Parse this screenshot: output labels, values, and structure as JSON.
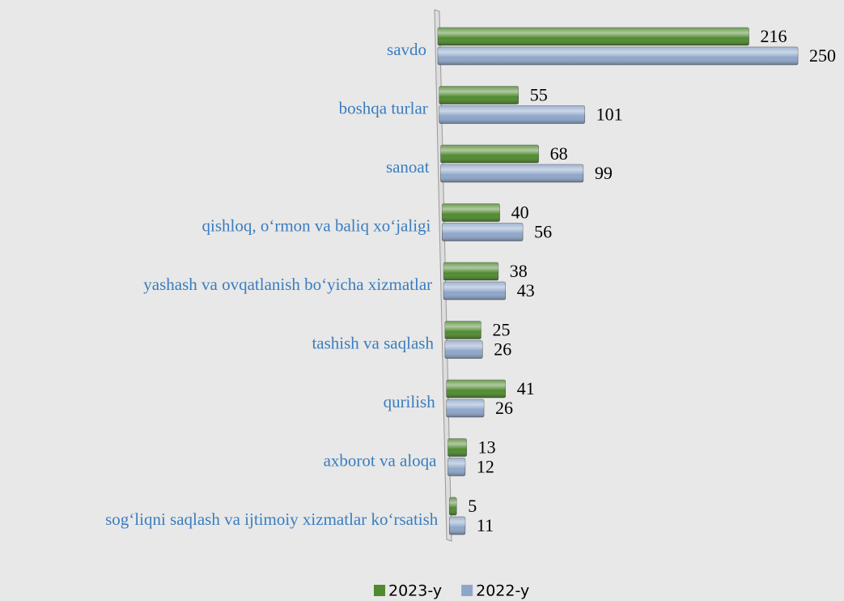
{
  "chart_data": {
    "type": "bar",
    "orientation": "horizontal",
    "categories": [
      "savdo",
      "boshqa turlar",
      "sanoat",
      "qishloq, o‘rmon va baliq xo‘jaligi",
      "yashash va ovqatlanish bo‘yicha xizmatlar",
      "tashish va saqlash",
      "qurilish",
      "axborot va aloqa",
      "sog‘liqni saqlash va ijtimoiy xizmatlar ko‘rsatish"
    ],
    "series": [
      {
        "name": "2023-y",
        "color": "#4e8a2f",
        "values": [
          216,
          55,
          68,
          40,
          38,
          25,
          41,
          13,
          5
        ]
      },
      {
        "name": "2022-y",
        "color": "#8ea6c9",
        "values": [
          250,
          101,
          99,
          56,
          43,
          26,
          26,
          12,
          11
        ]
      }
    ],
    "legend": "bottom"
  }
}
